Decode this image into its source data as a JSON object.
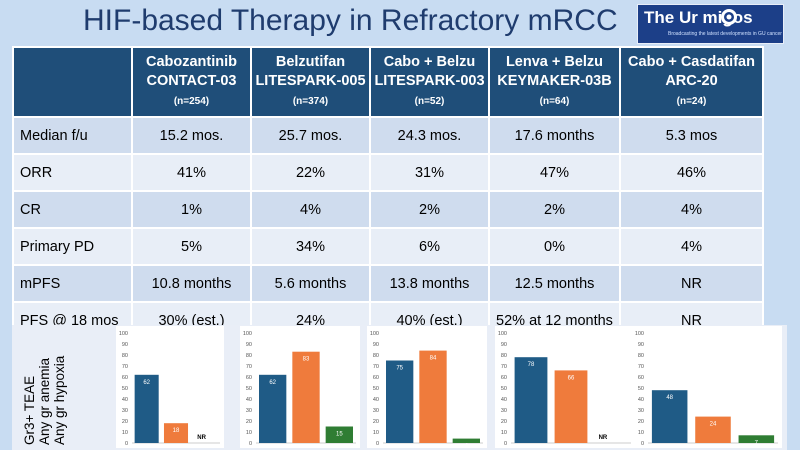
{
  "slide": {
    "title": "HIF-based Therapy in Refractory mRCC",
    "logo": {
      "text": "The Ur   migos",
      "tagline": "Broadcasting the latest developments in GU cancer"
    }
  },
  "table": {
    "columns": [
      {
        "line1": "Cabozantinib",
        "line2": "CONTACT-03",
        "n": "(n=254)"
      },
      {
        "line1": "Belzutifan",
        "line2": "LITESPARK-005",
        "n": "(n=374)"
      },
      {
        "line1": "Cabo + Belzu",
        "line2": "LITESPARK-003",
        "n": "(n=52)"
      },
      {
        "line1": "Lenva + Belzu",
        "line2": "KEYMAKER-03B",
        "n": "(n=64)"
      },
      {
        "line1": "Cabo + Casdatifan",
        "line2": "ARC-20",
        "n": "(n=24)"
      }
    ],
    "rows": [
      {
        "label": "Median f/u",
        "cells": [
          "15.2 mos.",
          "25.7 mos.",
          "24.3 mos.",
          "17.6 months",
          "5.3 mos"
        ]
      },
      {
        "label": "ORR",
        "cells": [
          "41%",
          "22%",
          "31%",
          "47%",
          "46%"
        ]
      },
      {
        "label": "CR",
        "cells": [
          "1%",
          "4%",
          "2%",
          "2%",
          "4%"
        ]
      },
      {
        "label": "Primary PD",
        "cells": [
          "5%",
          "34%",
          "6%",
          "0%",
          "4%"
        ]
      },
      {
        "label": "mPFS",
        "cells": [
          "10.8 months",
          "5.6 months",
          "13.8 months",
          "12.5 months",
          "NR"
        ]
      },
      {
        "label": "PFS @ 18  mos",
        "cells": [
          "30% (est.)",
          "24%",
          "40% (est.)",
          "52% at 12 months",
          "NR"
        ]
      }
    ]
  },
  "row_label": {
    "line1": "Gr3+ TEAE",
    "line2": "Any gr anemia",
    "line3": "Any gr hypoxia"
  },
  "colors": {
    "teae": "#1f5b86",
    "anemia": "#ef7b3c",
    "hypoxia": "#2f7d33",
    "header_bg": "#1f4e79"
  },
  "chart_data": [
    {
      "type": "bar",
      "categories": [
        "Gr3+ TEAE",
        "Any gr anemia",
        "Any gr hypoxia"
      ],
      "values": [
        62,
        18,
        null
      ],
      "labels": [
        "62",
        "18",
        "NR"
      ],
      "ylim": [
        0,
        100
      ],
      "ticks": [
        "0",
        "10",
        "20",
        "30",
        "40",
        "50",
        "60",
        "70",
        "80",
        "90",
        "100"
      ]
    },
    {
      "type": "bar",
      "categories": [
        "Gr3+ TEAE",
        "Any gr anemia",
        "Any gr hypoxia"
      ],
      "values": [
        62,
        83,
        15
      ],
      "labels": [
        "62",
        "83",
        "15"
      ],
      "ylim": [
        0,
        100
      ],
      "ticks": [
        "0",
        "10",
        "20",
        "30",
        "40",
        "50",
        "60",
        "70",
        "80",
        "90",
        "100"
      ]
    },
    {
      "type": "bar",
      "categories": [
        "Gr3+ TEAE",
        "Any gr anemia",
        "Any gr hypoxia"
      ],
      "values": [
        75,
        84,
        4
      ],
      "labels": [
        "75",
        "84",
        "4"
      ],
      "ylim": [
        0,
        100
      ],
      "ticks": [
        "0",
        "10",
        "20",
        "30",
        "40",
        "50",
        "60",
        "70",
        "80",
        "90",
        "100"
      ]
    },
    {
      "type": "bar",
      "categories": [
        "Gr3+ TEAE",
        "Any gr anemia",
        "Any gr hypoxia"
      ],
      "values": [
        78,
        66,
        null
      ],
      "labels": [
        "78",
        "66",
        "NR"
      ],
      "ylim": [
        0,
        100
      ],
      "ticks": [
        "0",
        "10",
        "20",
        "30",
        "40",
        "50",
        "60",
        "70",
        "80",
        "90",
        "100"
      ]
    },
    {
      "type": "bar",
      "categories": [
        "Gr3+ TEAE",
        "Any gr anemia",
        "Any gr hypoxia"
      ],
      "values": [
        48,
        24,
        7
      ],
      "labels": [
        "48",
        "24",
        "7"
      ],
      "ylim": [
        0,
        100
      ],
      "ticks": [
        "0",
        "10",
        "20",
        "30",
        "40",
        "50",
        "60",
        "70",
        "80",
        "90",
        "100"
      ]
    }
  ]
}
